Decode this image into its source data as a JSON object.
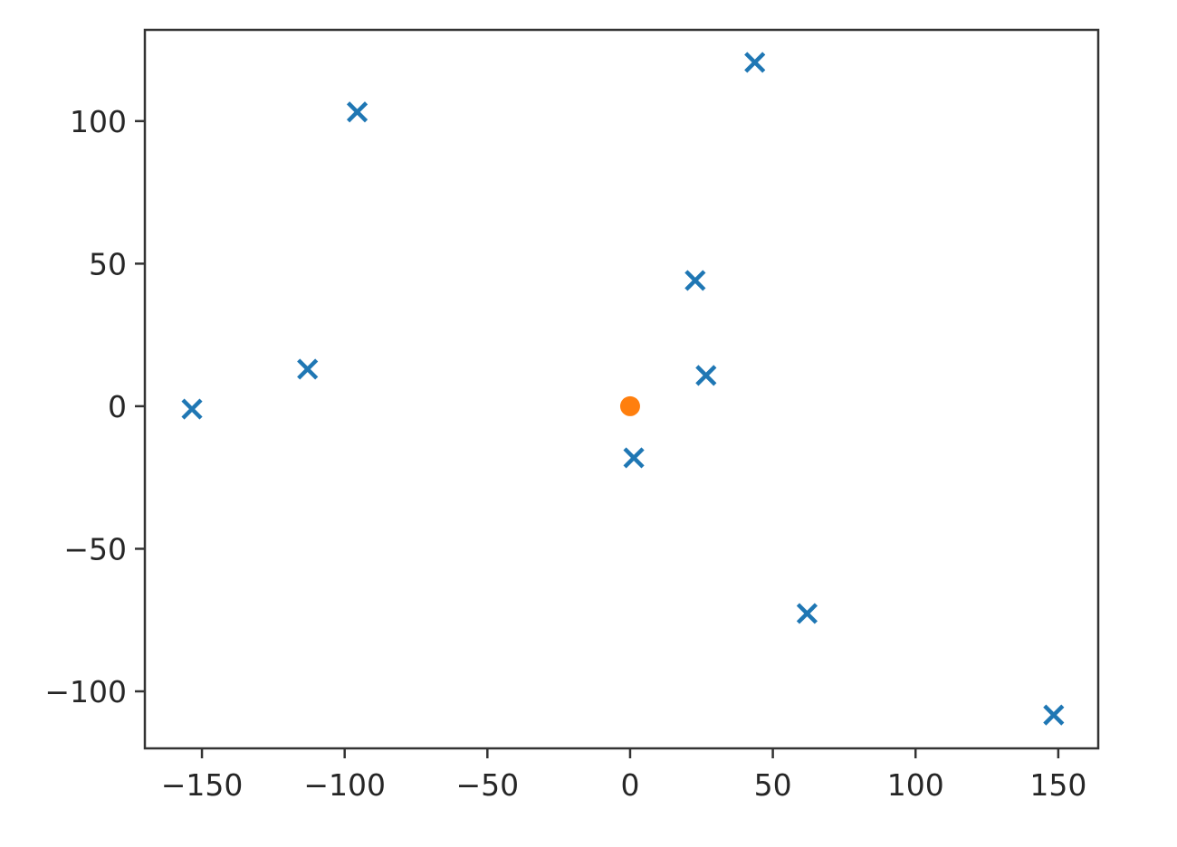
{
  "chart_data": {
    "type": "scatter",
    "title": "",
    "xlabel": "",
    "ylabel": "",
    "xlim": [
      -170,
      164
    ],
    "ylim": [
      -120,
      132
    ],
    "grid": false,
    "x_ticks": [
      -150,
      -100,
      -50,
      0,
      50,
      100,
      150
    ],
    "x_tick_labels": [
      "−150",
      "−100",
      "−50",
      "0",
      "50",
      "100",
      "150"
    ],
    "y_ticks": [
      -100,
      -50,
      0,
      50,
      100
    ],
    "y_tick_labels": [
      "−100",
      "−50",
      "0",
      "50",
      "100"
    ],
    "series": [
      {
        "marker": "x",
        "color": "#1f77b4",
        "points": [
          [
            -95.6,
            103.2
          ],
          [
            43.7,
            120.6
          ],
          [
            22.8,
            44.1
          ],
          [
            -113,
            13
          ],
          [
            26.6,
            10.8
          ],
          [
            -153.5,
            -1
          ],
          [
            1.3,
            -18.1
          ],
          [
            62,
            -72.7
          ],
          [
            148.4,
            -108.3
          ]
        ]
      },
      {
        "marker": "o",
        "color": "#ff7f0e",
        "points": [
          [
            0,
            0
          ]
        ]
      }
    ]
  }
}
